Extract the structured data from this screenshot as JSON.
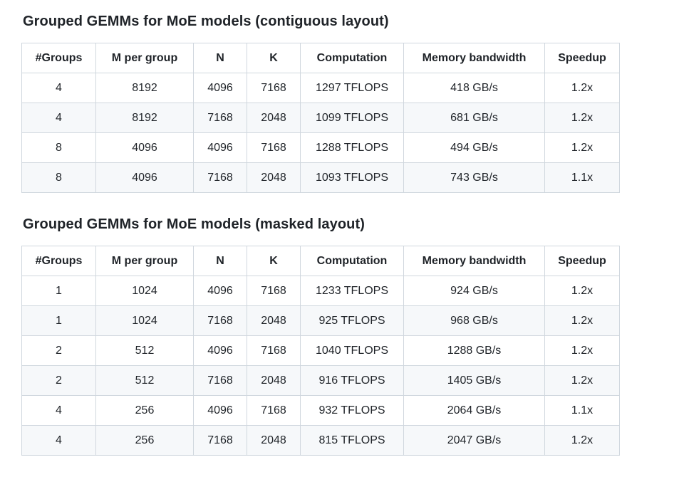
{
  "theme": {
    "page_bg": "#ffffff",
    "text_color": "#1f2328",
    "border_color": "#d0d7de",
    "row_alt_bg": "#f6f8fa"
  },
  "tables": [
    {
      "title": "Grouped GEMMs for MoE models (contiguous layout)",
      "columns": [
        "#Groups",
        "M per group",
        "N",
        "K",
        "Computation",
        "Memory bandwidth",
        "Speedup"
      ],
      "rows": [
        [
          "4",
          "8192",
          "4096",
          "7168",
          "1297 TFLOPS",
          "418 GB/s",
          "1.2x"
        ],
        [
          "4",
          "8192",
          "7168",
          "2048",
          "1099 TFLOPS",
          "681 GB/s",
          "1.2x"
        ],
        [
          "8",
          "4096",
          "4096",
          "7168",
          "1288 TFLOPS",
          "494 GB/s",
          "1.2x"
        ],
        [
          "8",
          "4096",
          "7168",
          "2048",
          "1093 TFLOPS",
          "743 GB/s",
          "1.1x"
        ]
      ]
    },
    {
      "title": "Grouped GEMMs for MoE models (masked layout)",
      "columns": [
        "#Groups",
        "M per group",
        "N",
        "K",
        "Computation",
        "Memory bandwidth",
        "Speedup"
      ],
      "rows": [
        [
          "1",
          "1024",
          "4096",
          "7168",
          "1233 TFLOPS",
          "924 GB/s",
          "1.2x"
        ],
        [
          "1",
          "1024",
          "7168",
          "2048",
          "925 TFLOPS",
          "968 GB/s",
          "1.2x"
        ],
        [
          "2",
          "512",
          "4096",
          "7168",
          "1040 TFLOPS",
          "1288 GB/s",
          "1.2x"
        ],
        [
          "2",
          "512",
          "7168",
          "2048",
          "916 TFLOPS",
          "1405 GB/s",
          "1.2x"
        ],
        [
          "4",
          "256",
          "4096",
          "7168",
          "932 TFLOPS",
          "2064 GB/s",
          "1.1x"
        ],
        [
          "4",
          "256",
          "7168",
          "2048",
          "815 TFLOPS",
          "2047 GB/s",
          "1.2x"
        ]
      ]
    }
  ]
}
